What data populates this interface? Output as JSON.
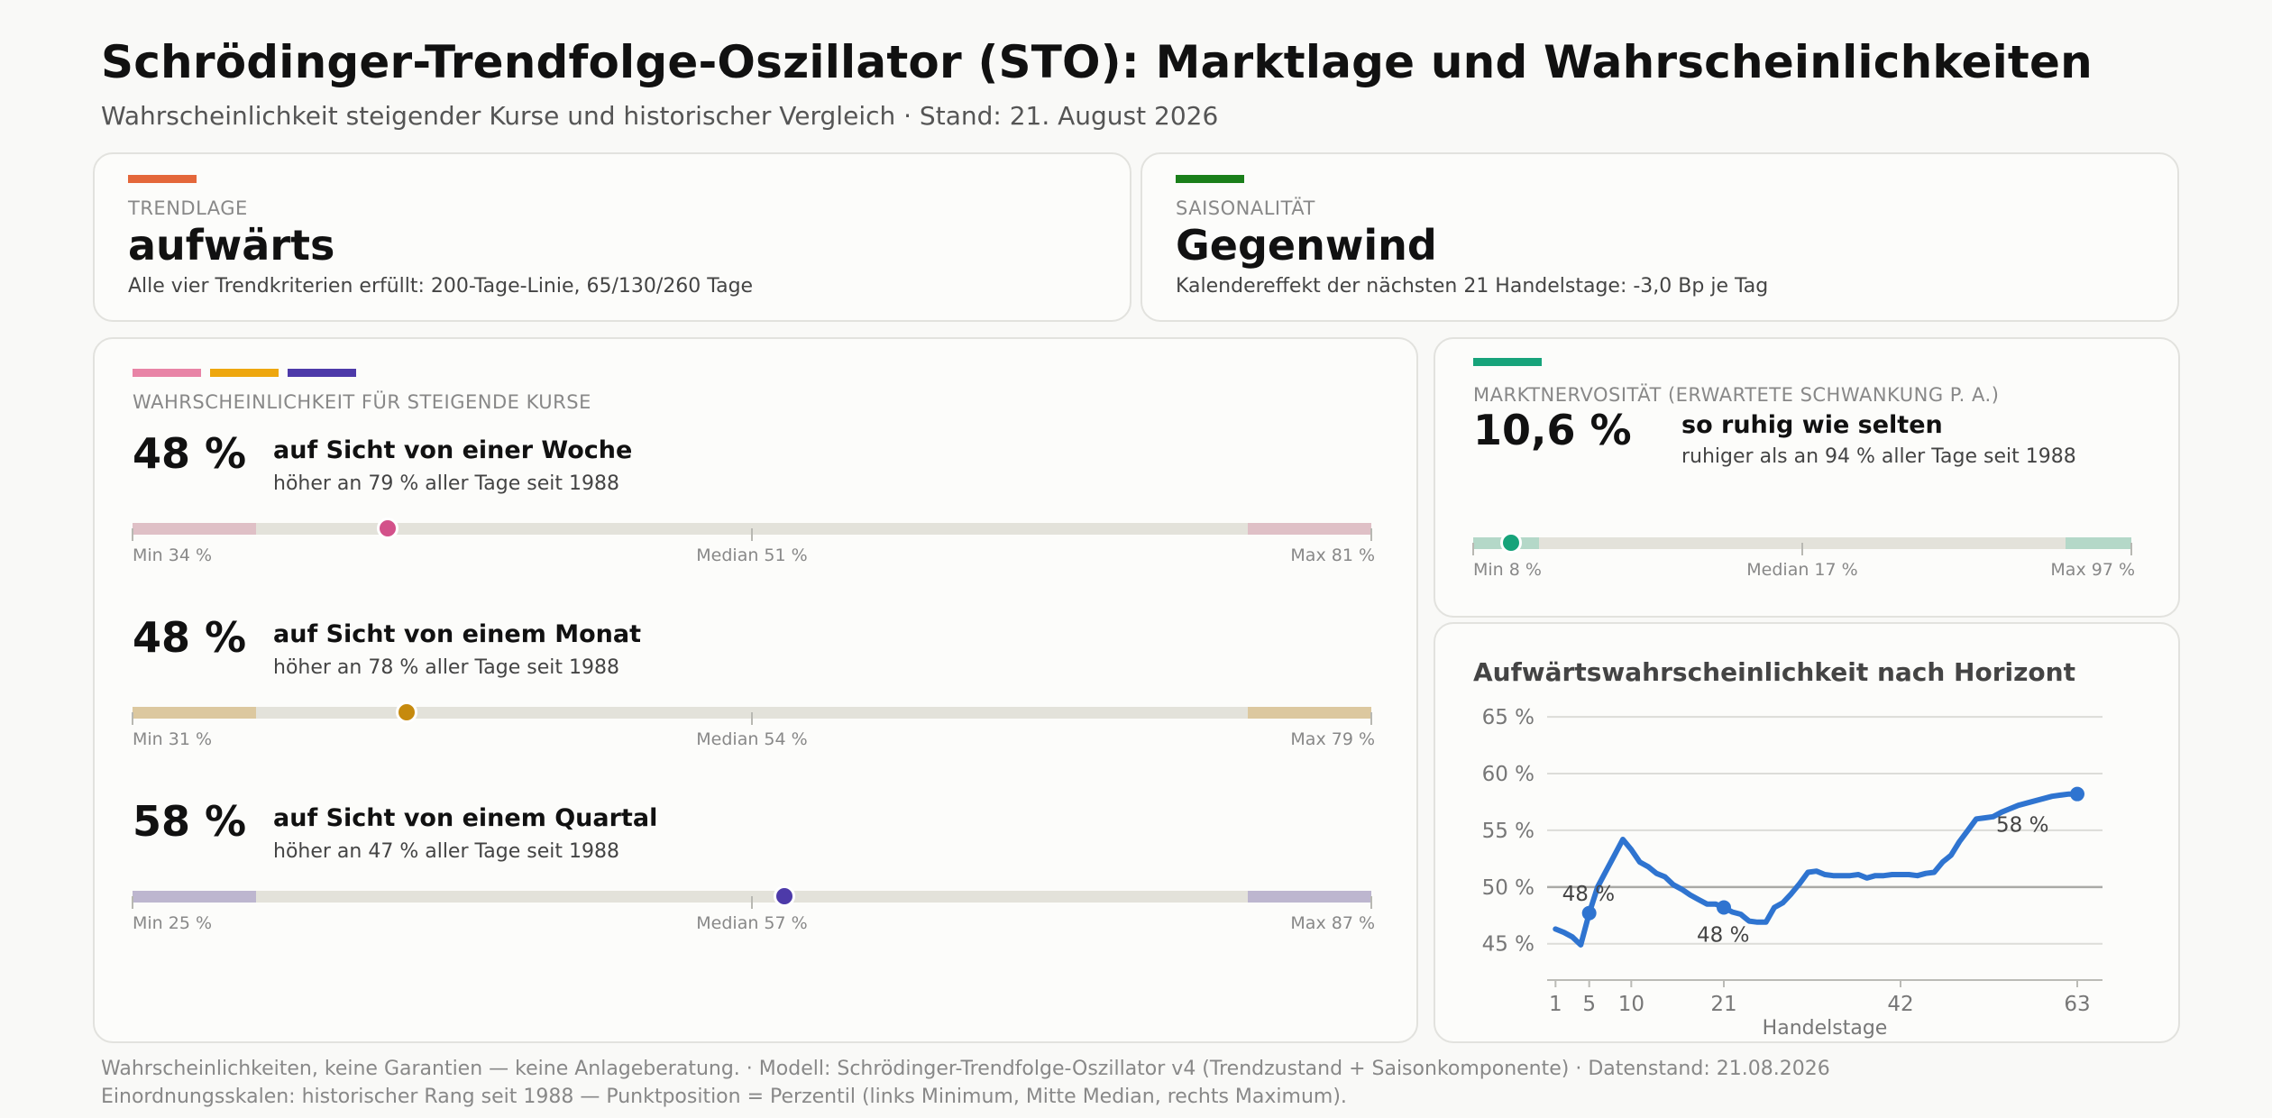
{
  "header": {
    "title": "Schrödinger-Trendfolge-Oszillator (STO): Marktlage und Wahrscheinlichkeiten",
    "subtitle": "Wahrscheinlichkeit steigender Kurse und historischer Vergleich  ·  Stand: 21. August 2026"
  },
  "trend": {
    "kicker": "TRENDLAGE",
    "value": "aufwärts",
    "description": "Alle vier Trendkriterien erfüllt: 200-Tage-Linie, 65/130/260 Tage",
    "accent_color": "#e4673a"
  },
  "season": {
    "kicker": "SAISONALITÄT",
    "value": "Gegenwind",
    "description": "Kalendereffekt der nächsten 21 Handelstage: -3,0 Bp je Tag",
    "accent_color": "#1a7f1a"
  },
  "probability": {
    "kicker": "WAHRSCHEINLICHKEIT FÜR STEIGENDE KURSE",
    "accent_colors": [
      "#e884a6",
      "#eea70e",
      "#4d3aa9"
    ],
    "rows": [
      {
        "percent": "48 %",
        "horizon": "auf Sicht von einer Woche",
        "rank": "höher an 79 % aller Tage seit 1988",
        "min": "Min 34 %",
        "median": "Median 51 %",
        "max": "Max 81 %",
        "percentile": 20.6,
        "color": "#d3518a",
        "band_color": "#dfc0c6"
      },
      {
        "percent": "48 %",
        "horizon": "auf Sicht von einem Monat",
        "rank": "höher an 78 % aller Tage seit 1988",
        "min": "Min 31 %",
        "median": "Median 54 %",
        "max": "Max 79 %",
        "percentile": 22.1,
        "color": "#c68a0e",
        "band_color": "#dcc89f"
      },
      {
        "percent": "58 %",
        "horizon": "auf Sicht von einem Quartal",
        "rank": "höher an 47 % aller Tage seit 1988",
        "min": "Min 25 %",
        "median": "Median 57 %",
        "max": "Max 87 %",
        "percentile": 52.6,
        "color": "#4d3aa9",
        "band_color": "#bdb6cf"
      }
    ]
  },
  "volatility": {
    "kicker": "MARKTNERVOSITÄT (ERWARTETE SCHWANKUNG P. A.)",
    "value": "10,6 %",
    "headline": "so ruhig wie selten",
    "rank": "ruhiger als an 94 % aller Tage seit 1988",
    "min": "Min 8 %",
    "median": "Median 17 %",
    "max": "Max 97 %",
    "percentile": 5.7,
    "color": "#17a37a",
    "band_color": "#b4d8c8",
    "accent_color": "#17a37a"
  },
  "chart_data": {
    "type": "line",
    "title": "Aufwärtswahrscheinlichkeit nach Horizont",
    "xlabel": "Handelstage",
    "ylabel": "",
    "xticks": [
      1,
      5,
      10,
      21,
      42,
      63
    ],
    "yticks": [
      45,
      50,
      55,
      60,
      65
    ],
    "ytick_labels": [
      "45 %",
      "50 %",
      "55 %",
      "60 %",
      "65 %"
    ],
    "xlim": [
      0,
      66
    ],
    "ylim": [
      41.8,
      66.2
    ],
    "reference_line": 50,
    "line_color": "#2f74d0",
    "grid": true,
    "series": [
      {
        "x": [
          1,
          2,
          3,
          4,
          5,
          6,
          7,
          8,
          9,
          10,
          11,
          12,
          13,
          14,
          15,
          16,
          17,
          18,
          19,
          20,
          21,
          22,
          23,
          24,
          25,
          26,
          27,
          28,
          29,
          30,
          31,
          32,
          33,
          34,
          35,
          36,
          37,
          38,
          39,
          40,
          41,
          42,
          43,
          44,
          45,
          46,
          47,
          48,
          49,
          50,
          51,
          52,
          53,
          54,
          55,
          56,
          57,
          58,
          59,
          60,
          61,
          62,
          63
        ],
        "y": [
          46.3,
          46.0,
          45.6,
          44.9,
          47.7,
          50.0,
          51.4,
          52.8,
          54.2,
          53.3,
          52.2,
          51.8,
          51.2,
          50.9,
          50.2,
          49.8,
          49.3,
          48.9,
          48.5,
          48.5,
          48.2,
          47.8,
          47.6,
          47.0,
          46.9,
          46.9,
          48.2,
          48.6,
          49.4,
          50.3,
          51.3,
          51.4,
          51.1,
          51.0,
          51.0,
          51.0,
          51.1,
          50.8,
          51.0,
          51.0,
          51.1,
          51.1,
          51.1,
          51.0,
          51.2,
          51.3,
          52.2,
          52.8,
          54.0,
          55.0,
          56.0,
          56.1,
          56.2,
          56.6,
          56.9,
          57.2,
          57.4,
          57.6,
          57.8,
          58.0,
          58.1,
          58.2,
          58.2
        ]
      }
    ],
    "highlights": [
      {
        "x": 5,
        "y": 47.7,
        "label": "48 %"
      },
      {
        "x": 21,
        "y": 48.2,
        "label": "48 %"
      },
      {
        "x": 63,
        "y": 58.2,
        "label": "58 %"
      }
    ]
  },
  "footer": {
    "line1": "Wahrscheinlichkeiten, keine Garantien — keine Anlageberatung.    ·    Modell: Schrödinger-Trendfolge-Oszillator v4 (Trendzustand + Saisonkomponente)  ·  Datenstand: 21.08.2026",
    "line2": "Einordnungsskalen: historischer Rang seit 1988 — Punktposition = Perzentil (links Minimum, Mitte Median, rechts Maximum)."
  }
}
